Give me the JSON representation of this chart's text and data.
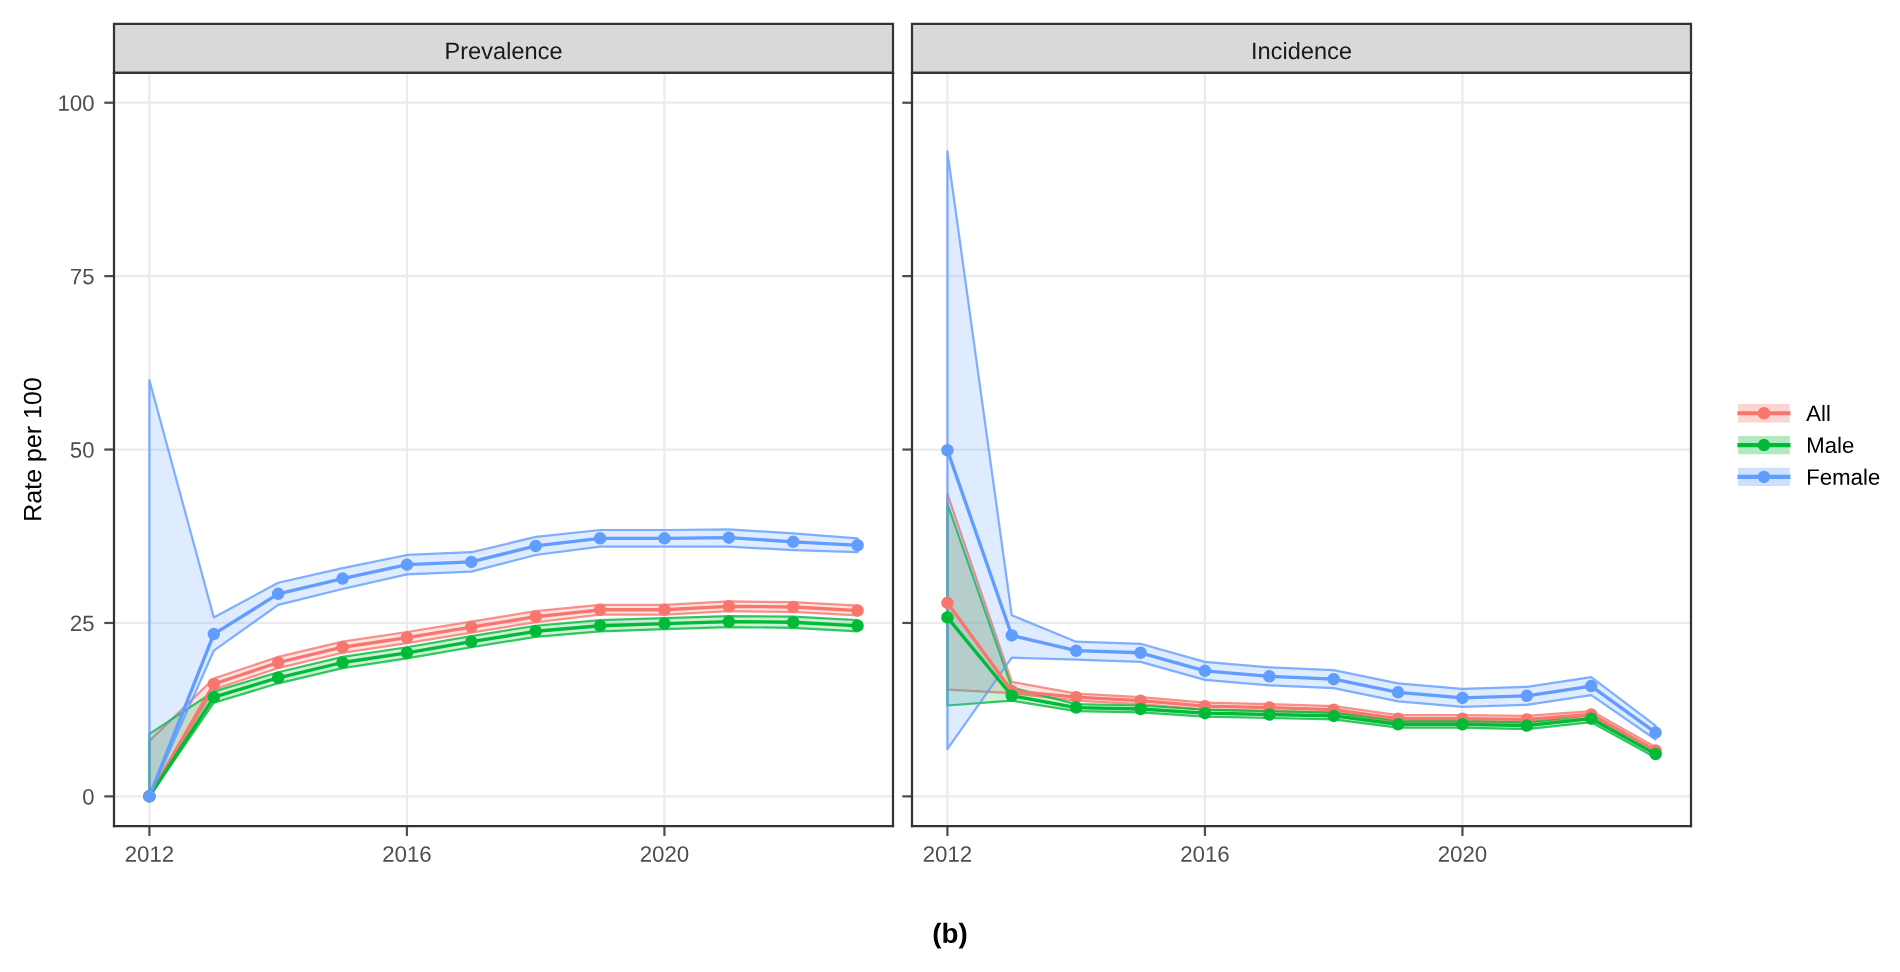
{
  "chart_data": [
    {
      "type": "line",
      "title": "Prevalence",
      "ylabel": "Rate per 100",
      "x": [
        2012,
        2013,
        2014,
        2015,
        2016,
        2017,
        2018,
        2019,
        2020,
        2021,
        2022,
        2023
      ],
      "xlim": [
        2011.45,
        2023.55
      ],
      "xticks": [
        2012,
        2016,
        2020
      ],
      "ylim": [
        -4.3,
        104.3
      ],
      "yticks": [
        0,
        25,
        50,
        75,
        100
      ],
      "grid": true,
      "marker": "circle",
      "legend": "right",
      "series": [
        {
          "name": "All",
          "color": "#f8766d",
          "values": [
            0,
            16.2,
            19.3,
            21.5,
            22.9,
            24.4,
            25.9,
            26.9,
            26.9,
            27.4,
            27.3,
            26.8
          ],
          "lower": [
            0,
            15.4,
            18.5,
            20.7,
            22.1,
            23.6,
            25.1,
            26.2,
            26.2,
            26.7,
            26.6,
            26.1
          ],
          "upper": [
            8,
            17,
            20.1,
            22.3,
            23.7,
            25.2,
            26.7,
            27.6,
            27.6,
            28.1,
            28,
            27.5
          ]
        },
        {
          "name": "Male",
          "color": "#00ba38",
          "values": [
            0,
            14.3,
            17.1,
            19.3,
            20.7,
            22.3,
            23.8,
            24.6,
            24.9,
            25.2,
            25.1,
            24.6
          ],
          "lower": [
            0,
            13.5,
            16.3,
            18.5,
            19.9,
            21.5,
            23,
            23.8,
            24.1,
            24.4,
            24.3,
            23.8
          ],
          "upper": [
            9,
            15.1,
            17.9,
            20.1,
            21.5,
            23.1,
            24.6,
            25.4,
            25.7,
            26,
            25.9,
            25.4
          ]
        },
        {
          "name": "Female",
          "color": "#619cff",
          "values": [
            0,
            23.4,
            29.2,
            31.4,
            33.4,
            33.8,
            36.1,
            37.2,
            37.2,
            37.3,
            36.7,
            36.2
          ],
          "lower": [
            0,
            21,
            27.6,
            29.9,
            32,
            32.4,
            34.8,
            36,
            36,
            36,
            35.5,
            35.2
          ],
          "upper": [
            60,
            25.8,
            30.8,
            32.9,
            34.8,
            35.2,
            37.4,
            38.4,
            38.4,
            38.5,
            37.9,
            37.2
          ]
        }
      ]
    },
    {
      "type": "line",
      "title": "Incidence",
      "x": [
        2012,
        2013,
        2014,
        2015,
        2016,
        2017,
        2018,
        2019,
        2020,
        2021,
        2022,
        2023
      ],
      "xlim": [
        2011.45,
        2023.55
      ],
      "xticks": [
        2012,
        2016,
        2020
      ],
      "ylim": [
        -4.3,
        104.3
      ],
      "yticks": [
        0,
        25,
        50,
        75,
        100
      ],
      "tick_labels": "x",
      "grid": true,
      "marker": "circle",
      "annotations": [
        "(b)"
      ],
      "series": [
        {
          "color": "#f8766d",
          "values": [
            27.9,
            15.2,
            14.3,
            13.8,
            13,
            12.8,
            12.5,
            11.2,
            11.2,
            11.1,
            11.8,
            6.6
          ],
          "lower": [
            15.4,
            14.9,
            13.8,
            13.3,
            12.5,
            12.3,
            12,
            10.7,
            10.7,
            10.6,
            11.3,
            6.1
          ],
          "upper": [
            43.6,
            16.5,
            14.8,
            14.3,
            13.5,
            13.3,
            13,
            11.7,
            11.7,
            11.6,
            12.3,
            7.1
          ]
        },
        {
          "color": "#00ba38",
          "values": [
            25.8,
            14.5,
            12.8,
            12.6,
            12,
            11.8,
            11.6,
            10.4,
            10.4,
            10.2,
            11.2,
            6.1
          ],
          "lower": [
            13.1,
            13.8,
            12.3,
            12.1,
            11.5,
            11.3,
            11.1,
            9.9,
            9.9,
            9.7,
            10.7,
            5.6
          ],
          "upper": [
            42.2,
            15.7,
            13.3,
            13.1,
            12.5,
            12.3,
            12.1,
            10.9,
            10.9,
            10.7,
            11.7,
            6.6
          ]
        },
        {
          "color": "#619cff",
          "values": [
            49.9,
            23.2,
            21,
            20.7,
            18.1,
            17.3,
            16.9,
            15,
            14.2,
            14.5,
            15.9,
            9.2
          ],
          "lower": [
            6.8,
            20,
            19.7,
            19.4,
            16.8,
            16,
            15.6,
            13.7,
            12.9,
            13.2,
            14.6,
            8.2
          ],
          "upper": [
            93,
            26.1,
            22.3,
            22,
            19.4,
            18.6,
            18.2,
            16.3,
            15.5,
            15.8,
            17.2,
            10.2
          ]
        }
      ]
    }
  ]
}
